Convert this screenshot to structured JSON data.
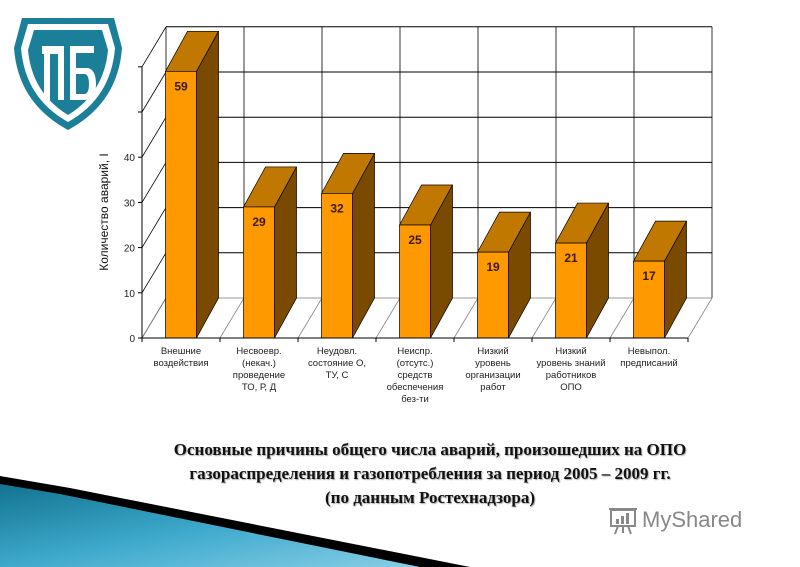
{
  "logo": {
    "letters": "ПБ",
    "color": "#1b7f9a"
  },
  "chart_data": {
    "type": "bar",
    "style": "3d-column",
    "categories": [
      "Внешние\nвоздействия",
      "Несвоевр.\n(некач.)\nпроведение\nТО, Р, Д",
      "Неудовл.\nсостояние О,\nТУ, С",
      "Неиспр.\n(отсутс.)\nсредств\nобеспечения\nбез-ти",
      "Низкий\nуровень\nорганизации\nработ",
      "Низкий\nуровень знаний\nработников\nОПО",
      "Невыпол.\nпредписаний"
    ],
    "values": [
      59,
      29,
      32,
      25,
      19,
      21,
      17
    ],
    "data_labels": [
      "59",
      "29",
      "32",
      "25",
      "19",
      "21",
      "17"
    ],
    "ylabel": "Количество аварий, I",
    "ylim": [
      0,
      60
    ],
    "yticks": [
      "0",
      "10",
      "20",
      "30",
      "40"
    ],
    "grid": true,
    "legend": "none",
    "colors": {
      "front": "#ff9900",
      "top": "#c07800",
      "side": "#7a4a00"
    }
  },
  "caption": {
    "line1": "Основные причины общего числа аварий, произошедших на ОПО",
    "line2": "газораспределения и газопотребления за период 2005 – 2009 гг.",
    "line3": "(по данным Ростехнадзора)"
  },
  "watermark": {
    "text": "MyShared",
    "icon": "presentation-board-icon"
  }
}
